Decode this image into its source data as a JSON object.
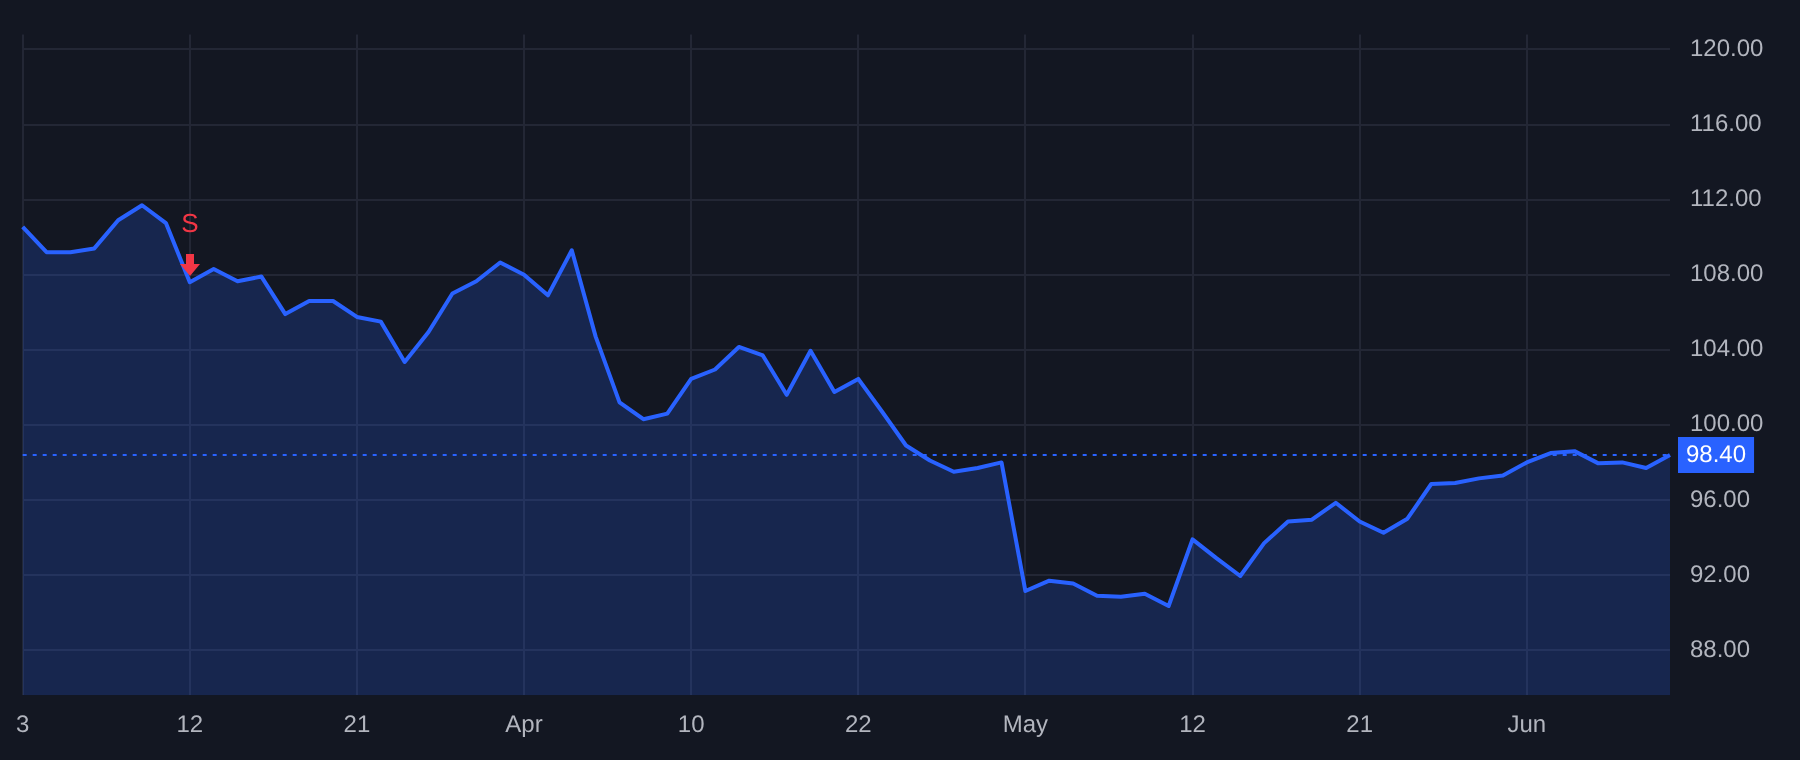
{
  "chart_data": {
    "type": "area",
    "categories": [
      "3",
      null,
      null,
      null,
      null,
      null,
      null,
      "12",
      null,
      null,
      null,
      null,
      null,
      null,
      "21",
      null,
      null,
      null,
      null,
      null,
      null,
      "Apr",
      null,
      null,
      null,
      null,
      null,
      null,
      "10",
      null,
      null,
      null,
      null,
      null,
      null,
      "22",
      null,
      null,
      null,
      null,
      null,
      null,
      "May",
      null,
      null,
      null,
      null,
      null,
      null,
      "12",
      null,
      null,
      null,
      null,
      null,
      null,
      "21",
      null,
      null,
      null,
      null,
      null,
      null,
      "Jun",
      null,
      null,
      null,
      null,
      null,
      null
    ],
    "series": [
      {
        "color": "#2962ff",
        "values": [
          110.55,
          109.2,
          109.2,
          109.4,
          110.9,
          111.7,
          110.75,
          107.6,
          108.3,
          107.65,
          107.9,
          105.9,
          106.6,
          106.6,
          105.75,
          105.5,
          103.35,
          104.95,
          107.0,
          107.65,
          108.65,
          108.0,
          106.9,
          109.3,
          104.7,
          101.2,
          100.3,
          100.6,
          102.45,
          102.95,
          104.15,
          103.7,
          101.6,
          103.95,
          101.75,
          102.45,
          100.7,
          98.9,
          98.1,
          97.5,
          97.7,
          98.0,
          91.15,
          91.7,
          91.55,
          90.9,
          90.85,
          91.0,
          90.35,
          93.9,
          92.9,
          91.95,
          93.7,
          94.85,
          94.95,
          95.85,
          94.85,
          94.25,
          95.0,
          96.85,
          96.9,
          97.15,
          97.3,
          98.0,
          98.5,
          98.6,
          97.95,
          98.0,
          97.7,
          98.4
        ]
      }
    ],
    "ylim": [
      85.6,
      120.8
    ],
    "yticks": [
      {
        "value": 88,
        "label": "88.00"
      },
      {
        "value": 92,
        "label": "92.00"
      },
      {
        "value": 96,
        "label": "96.00"
      },
      {
        "value": 100,
        "label": "100.00"
      },
      {
        "value": 104,
        "label": "104.00"
      },
      {
        "value": 108,
        "label": "108.00"
      },
      {
        "value": 112,
        "label": "112.00"
      },
      {
        "value": 116,
        "label": "116.00"
      },
      {
        "value": 120,
        "label": "120.00"
      }
    ],
    "ref_lines": [
      {
        "axis": "y",
        "value": 98.4,
        "label": "98.40",
        "color": "#2962ff",
        "line_style": "dotted"
      }
    ],
    "annotations": [
      {
        "text": "S",
        "x": "12",
        "y": 107.6
      }
    ],
    "grid": true,
    "legend": false,
    "marker": "none",
    "line_style": "solid"
  }
}
